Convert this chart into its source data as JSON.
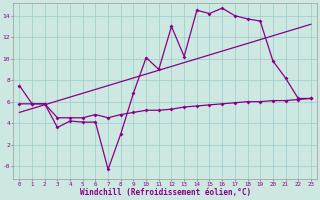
{
  "xlabel": "Windchill (Refroidissement éolien,°C)",
  "bg_color": "#cce8e0",
  "line_color": "#880088",
  "grid_color": "#99cccc",
  "x_values": [
    0,
    1,
    2,
    3,
    4,
    5,
    6,
    7,
    8,
    9,
    10,
    11,
    12,
    13,
    14,
    15,
    16,
    17,
    18,
    19,
    20,
    21,
    22,
    23
  ],
  "series1": [
    7.5,
    5.8,
    5.8,
    3.6,
    4.2,
    4.1,
    4.1,
    -0.3,
    3.0,
    6.8,
    10.1,
    9.0,
    13.0,
    10.2,
    14.5,
    14.2,
    14.7,
    14.0,
    13.7,
    13.5,
    9.8,
    8.2,
    6.3,
    6.3
  ],
  "series2": [
    5.8,
    5.8,
    5.8,
    4.5,
    4.5,
    4.5,
    4.8,
    4.5,
    4.8,
    5.0,
    5.2,
    5.2,
    5.3,
    5.5,
    5.6,
    5.7,
    5.8,
    5.9,
    6.0,
    6.0,
    6.1,
    6.1,
    6.2,
    6.3
  ],
  "trend_x": [
    0,
    23
  ],
  "trend_y": [
    5.0,
    13.2
  ],
  "xlim": [
    0,
    23
  ],
  "ylim": [
    -1.2,
    15.2
  ],
  "yticks": [
    0,
    2,
    4,
    6,
    8,
    10,
    12,
    14
  ],
  "ytick_labels": [
    "-0",
    "2",
    "4",
    "6",
    "8",
    "10",
    "12",
    "14"
  ],
  "marker_size": 2.0,
  "line_width": 0.9,
  "tick_fontsize": 4.2,
  "xlabel_fontsize": 5.5
}
